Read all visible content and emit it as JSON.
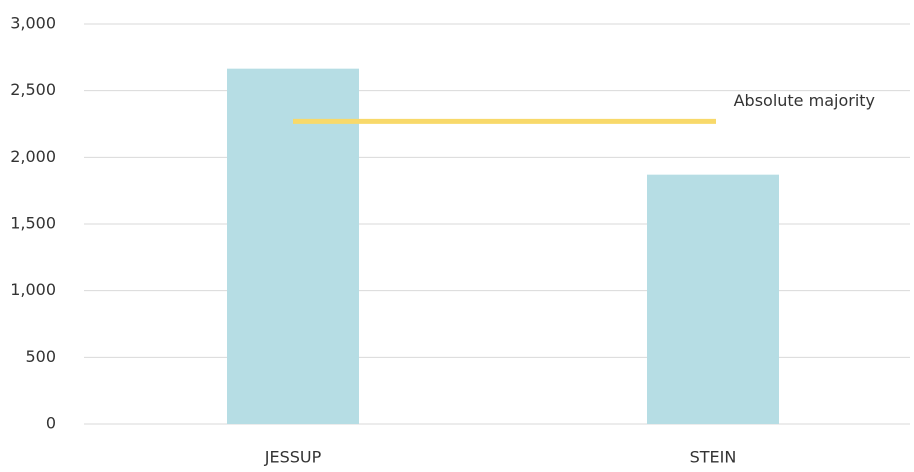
{
  "chart_data": {
    "type": "bar",
    "categories": [
      "JESSUP",
      "STEIN"
    ],
    "values": [
      2665,
      1870
    ],
    "color": "#b6dde4",
    "ylim": [
      0,
      3000
    ],
    "yticks": [
      0,
      500,
      {
        "value": 1000,
        "label": "1,000"
      },
      {
        "value": 1500,
        "label": "1,500"
      },
      {
        "value": 2000,
        "label": "2,000"
      },
      {
        "value": 2500,
        "label": "2,500"
      },
      {
        "value": 3000,
        "label": "3,000"
      }
    ],
    "grid": true,
    "reference_line": {
      "label": "Absolute majority",
      "value": 2270,
      "color": "#f8d96a"
    }
  }
}
